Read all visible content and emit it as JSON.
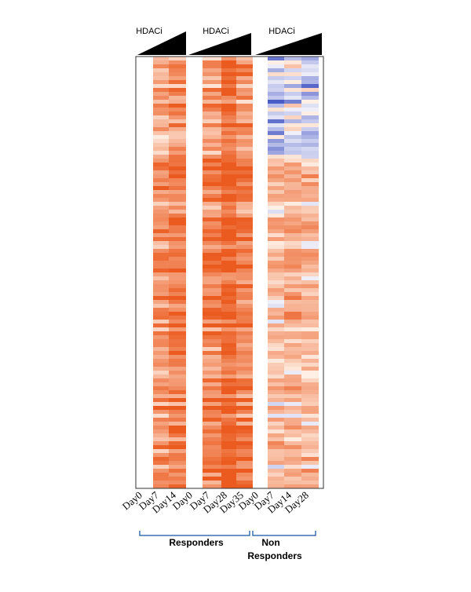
{
  "header_labels": [
    "HDACi",
    "HDACi",
    "HDACi"
  ],
  "column_labels": [
    "Day0",
    "Day7",
    "Day14",
    "Day0",
    "Day7",
    "Day28",
    "Day35",
    "Day0",
    "Day7",
    "Day14",
    "Day28"
  ],
  "groups": {
    "responders": "Responders",
    "non_responders_1": "Non",
    "non_responders_2": "Responders"
  }
}
